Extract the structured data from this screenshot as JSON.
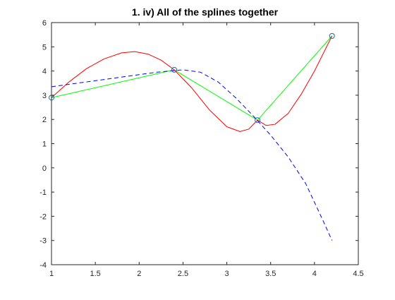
{
  "chart_data": {
    "type": "line",
    "title": "1. iv) All of the splines together",
    "xlabel": "",
    "ylabel": "",
    "xlim": [
      1,
      4.5
    ],
    "ylim": [
      -4,
      6
    ],
    "xticks": [
      1,
      1.5,
      2,
      2.5,
      3,
      3.5,
      4,
      4.5
    ],
    "xtick_labels": [
      "1",
      "1.5",
      "2",
      "2.5",
      "3",
      "3.5",
      "4",
      "4.5"
    ],
    "yticks": [
      -4,
      -3,
      -2,
      -1,
      0,
      1,
      2,
      3,
      4,
      5,
      6
    ],
    "ytick_labels": [
      "-4",
      "-3",
      "-2",
      "-1",
      "0",
      "1",
      "2",
      "3",
      "4",
      "5",
      "6"
    ],
    "grid": false,
    "legend": "none",
    "series": [
      {
        "style": "solid",
        "color": "#00ff00",
        "x": [
          1.0,
          2.4,
          3.35,
          4.2
        ],
        "y": [
          2.9,
          4.05,
          1.97,
          5.45
        ]
      },
      {
        "style": "solid",
        "color": "#ff0000",
        "x": [
          1.0,
          1.2,
          1.4,
          1.6,
          1.8,
          1.95,
          2.1,
          2.25,
          2.4,
          2.6,
          2.8,
          3.0,
          3.15,
          3.25,
          3.35,
          3.45,
          3.55,
          3.7,
          3.85,
          4.0,
          4.2
        ],
        "y": [
          2.9,
          3.55,
          4.1,
          4.5,
          4.75,
          4.8,
          4.7,
          4.45,
          4.05,
          3.3,
          2.4,
          1.7,
          1.5,
          1.6,
          1.97,
          1.75,
          1.8,
          2.25,
          3.05,
          4.0,
          5.45
        ]
      },
      {
        "style": "dashed",
        "color": "#0000ff",
        "x": [
          1.0,
          1.3,
          1.6,
          1.9,
          2.2,
          2.5,
          2.7,
          2.9,
          3.1,
          3.3,
          3.5,
          3.7,
          3.9,
          4.1,
          4.2
        ],
        "y": [
          3.35,
          3.5,
          3.65,
          3.8,
          3.95,
          4.05,
          3.95,
          3.55,
          2.9,
          2.15,
          1.35,
          0.45,
          -0.65,
          -2.2,
          -3.0
        ]
      }
    ],
    "markers": {
      "shape": "circle",
      "edge_color": "#0072bd",
      "x": [
        1.0,
        2.4,
        3.35,
        4.2
      ],
      "y": [
        2.9,
        4.05,
        1.97,
        5.45
      ]
    }
  }
}
